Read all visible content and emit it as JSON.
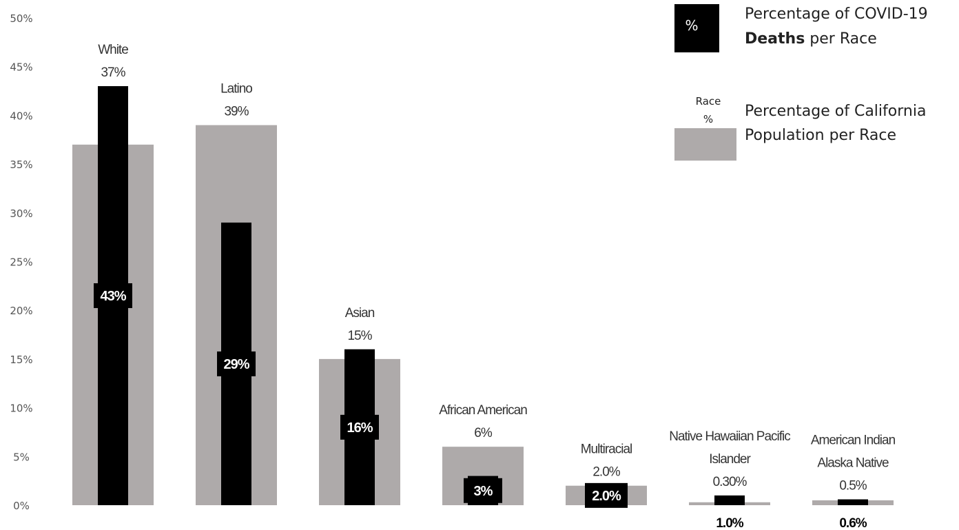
{
  "chart_data": {
    "type": "bar",
    "categories": [
      [
        "White"
      ],
      [
        "Latino"
      ],
      [
        "Asian"
      ],
      [
        "African American"
      ],
      [
        "Multiracial"
      ],
      [
        "Native Hawaiian Pacific",
        "Islander"
      ],
      [
        "American Indian",
        "Alaska Native"
      ]
    ],
    "series": [
      {
        "name": "Percentage of California Population per Race",
        "values": [
          37,
          39,
          15,
          6,
          2.0,
          0.3,
          0.5
        ],
        "labels": [
          "37%",
          "39%",
          "15%",
          "6%",
          "2.0%",
          "0.30%",
          "0.5%"
        ],
        "color": "#aeaaaa"
      },
      {
        "name": "Percentage of COVID-19 Deaths per Race",
        "values": [
          43,
          29,
          16,
          3,
          2.0,
          1.0,
          0.6
        ],
        "labels": [
          "43%",
          "29%",
          "16%",
          "3%",
          "2.0%",
          "1.0%",
          "0.6%"
        ],
        "color": "#000000"
      }
    ],
    "ylim": [
      0,
      50
    ],
    "yticks": [
      "0%",
      "5%",
      "10%",
      "15%",
      "20%",
      "25%",
      "30%",
      "35%",
      "40%",
      "45%",
      "50%"
    ],
    "ytick_values": [
      0,
      5,
      10,
      15,
      20,
      25,
      30,
      35,
      40,
      45,
      50
    ],
    "grid": false,
    "legend_position": "top-right",
    "legend": {
      "deaths": {
        "icon_text": "%",
        "line1": "Percentage of COVID-19",
        "line2_bold": "Deaths",
        "line2_rest": " per Race",
        "color": "#000000"
      },
      "population": {
        "icon_text_line1": "Race",
        "icon_text_line2": "%",
        "line1": "Percentage of California",
        "line2": "Population per Race",
        "color": "#aeaaaa"
      }
    }
  }
}
